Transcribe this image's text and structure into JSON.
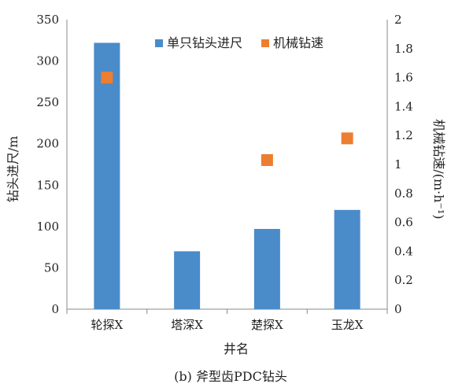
{
  "chart_data": {
    "type": "bar",
    "categories": [
      "轮探X",
      "塔深X",
      "楚探X",
      "玉龙X"
    ],
    "series": [
      {
        "name": "单只钻头进尺",
        "kind": "bar",
        "axis": "left",
        "color": "#4a8bc9",
        "values": [
          322,
          70,
          97,
          120
        ]
      },
      {
        "name": "机械钻速",
        "kind": "marker",
        "axis": "right",
        "color": "#ed7d31",
        "values": [
          1.6,
          null,
          1.03,
          1.18
        ]
      }
    ],
    "xlabel": "井名",
    "ylabel": "钻头进尺/m",
    "y2label": "机械钻速/(m·h⁻¹)",
    "ylim": [
      0,
      350
    ],
    "y2lim": [
      0,
      2
    ],
    "yticks": [
      "0",
      "50",
      "100",
      "150",
      "200",
      "250",
      "300",
      "350"
    ],
    "y2ticks": [
      "0",
      "0.2",
      "0.4",
      "0.6",
      "0.8",
      "1",
      "1.2",
      "1.4",
      "1.6",
      "1.8",
      "2"
    ],
    "legend_position": "top-right",
    "grid": false
  },
  "caption": "(b) 斧型齿PDC钻头"
}
